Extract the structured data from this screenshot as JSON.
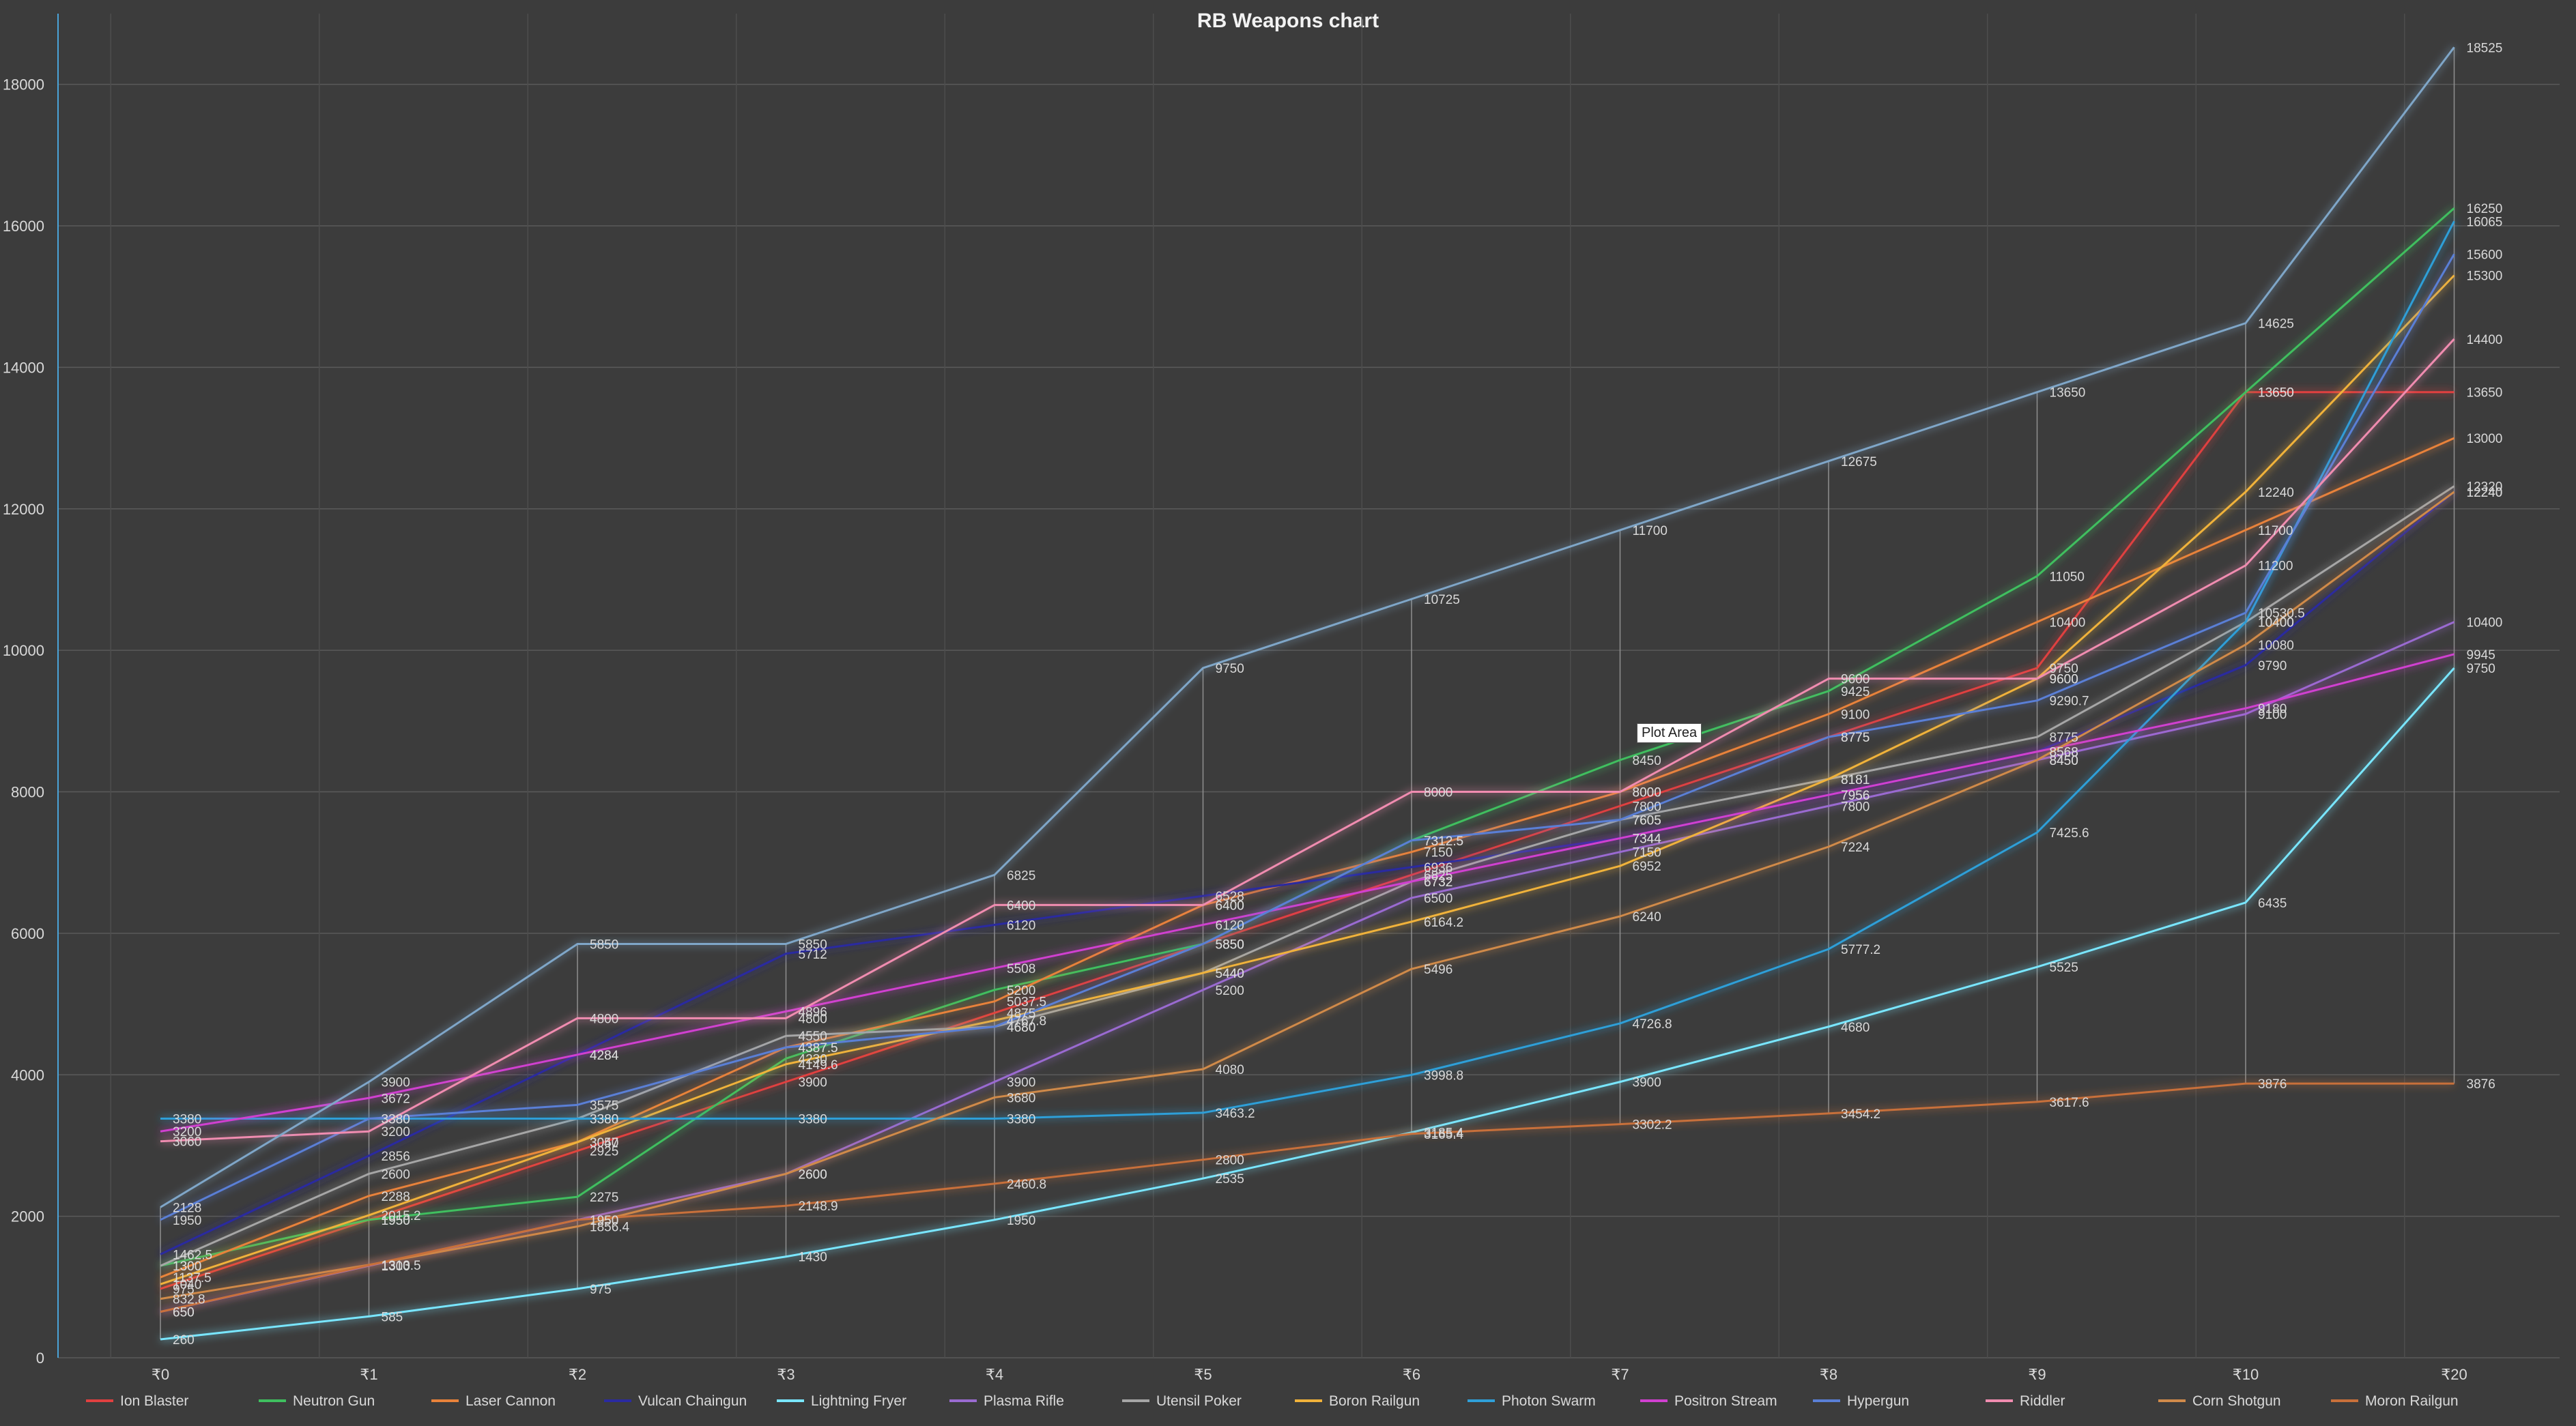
{
  "tooltip": "Plot Area",
  "chart_data": {
    "type": "line",
    "title": "RB Weapons chart",
    "xlabel": "",
    "ylabel": "",
    "categories": [
      "₹0",
      "₹1",
      "₹2",
      "₹3",
      "₹4",
      "₹5",
      "₹6",
      "₹7",
      "₹8",
      "₹9",
      "₹10",
      "₹20"
    ],
    "ylim": [
      0,
      19000
    ],
    "yticks": [
      0,
      2000,
      4000,
      6000,
      8000,
      10000,
      12000,
      14000,
      16000,
      18000
    ],
    "grid": true,
    "legend_position": "bottom",
    "colors": {
      "background": "#3c3c3c",
      "gridline": "#5a5a5a",
      "text": "#d9d9d9",
      "title": "#f2f2f2"
    },
    "series": [
      {
        "name": "Ion Blaster",
        "color": "#e04040",
        "values": [
          975,
          1950,
          2925,
          3900,
          4875,
          5850,
          6825,
          7800,
          8775,
          9750,
          13650,
          13650
        ]
      },
      {
        "name": "Neutron Gun",
        "color": "#3fbf5f",
        "values": [
          1300,
          1950,
          2275,
          4230,
          5200,
          5850,
          7312.5,
          8450,
          9425,
          11050,
          13650,
          16250
        ]
      },
      {
        "name": "Laser Cannon",
        "color": "#e8823a",
        "values": [
          1137.5,
          2288,
          3050,
          4387.5,
          5037.5,
          6400,
          7150,
          8000,
          9100,
          10400,
          11700,
          13000
        ]
      },
      {
        "name": "Vulcan Chaingun",
        "color": "#2a2aa0",
        "values": [
          1462.5,
          2856,
          4284,
          5712,
          6120,
          6528,
          6936,
          7344,
          7956,
          8568,
          9790,
          12240
        ]
      },
      {
        "name": "Lightning Fryer",
        "color": "#79e6ff",
        "values": [
          260,
          585,
          975,
          1430,
          1950,
          2535,
          3185.4,
          3900,
          4680,
          5525,
          6435,
          9750
        ]
      },
      {
        "name": "Plasma Rifle",
        "color": "#9a6bd1",
        "values": [
          650,
          1300,
          1950,
          2600,
          3900,
          5200,
          6500,
          7150,
          7800,
          8450,
          9100,
          10400
        ]
      },
      {
        "name": "Utensil Poker",
        "color": "#a6a6a6",
        "values": [
          1300,
          2600,
          3380,
          4550,
          4680,
          5440,
          6732,
          7605,
          8181,
          8775,
          10400,
          12320
        ]
      },
      {
        "name": "Boron Railgun",
        "color": "#f0b23a",
        "values": [
          1040,
          2015.2,
          3047,
          4149.6,
          4767.8,
          5440,
          6164.2,
          6952,
          8181,
          9600,
          12240,
          15300
        ]
      },
      {
        "name": "Photon Swarm",
        "color": "#2f9fd8",
        "values": [
          3380,
          3380,
          3380,
          3380,
          3380,
          3463.2,
          3998.8,
          4726.8,
          5777.2,
          7425.6,
          10400,
          16065
        ]
      },
      {
        "name": "Positron Stream",
        "color": "#d040d0",
        "values": [
          3200,
          3672,
          4284,
          4896,
          5508,
          6120,
          6732,
          7344,
          7956,
          8568,
          9180,
          9945
        ]
      },
      {
        "name": "Hypergun",
        "color": "#5a7fd6",
        "values": [
          1950,
          3380,
          3575,
          4387.5,
          4680,
          5850,
          7312.5,
          7605,
          8775,
          9290.7,
          10530.5,
          15600
        ]
      },
      {
        "name": "Riddler",
        "color": "#f08cb0",
        "values": [
          3060,
          3200,
          4800,
          4800,
          6400,
          6400,
          8000,
          8000,
          9600,
          9600,
          11200,
          14400
        ]
      },
      {
        "name": "Corn Shotgun",
        "color": "#d08a4a",
        "values": [
          832.8,
          1313.5,
          1856.4,
          2600,
          3680,
          4080,
          5496,
          6240,
          7224,
          8450,
          10080,
          12240
        ]
      },
      {
        "name": "Moron Railgun",
        "color": "#c8703a",
        "values": [
          650,
          1310,
          1950,
          2148.9,
          2460.8,
          2800,
          3165.4,
          3302.2,
          3454.2,
          3617.6,
          3876,
          3876
        ]
      },
      {
        "name": "",
        "color": "#7fa6c8",
        "values": [
          2128,
          3900,
          5850,
          5850,
          6825,
          9750,
          10725,
          11700,
          12675,
          13650,
          14625,
          18525
        ]
      }
    ],
    "marked_series_index": 14
  }
}
